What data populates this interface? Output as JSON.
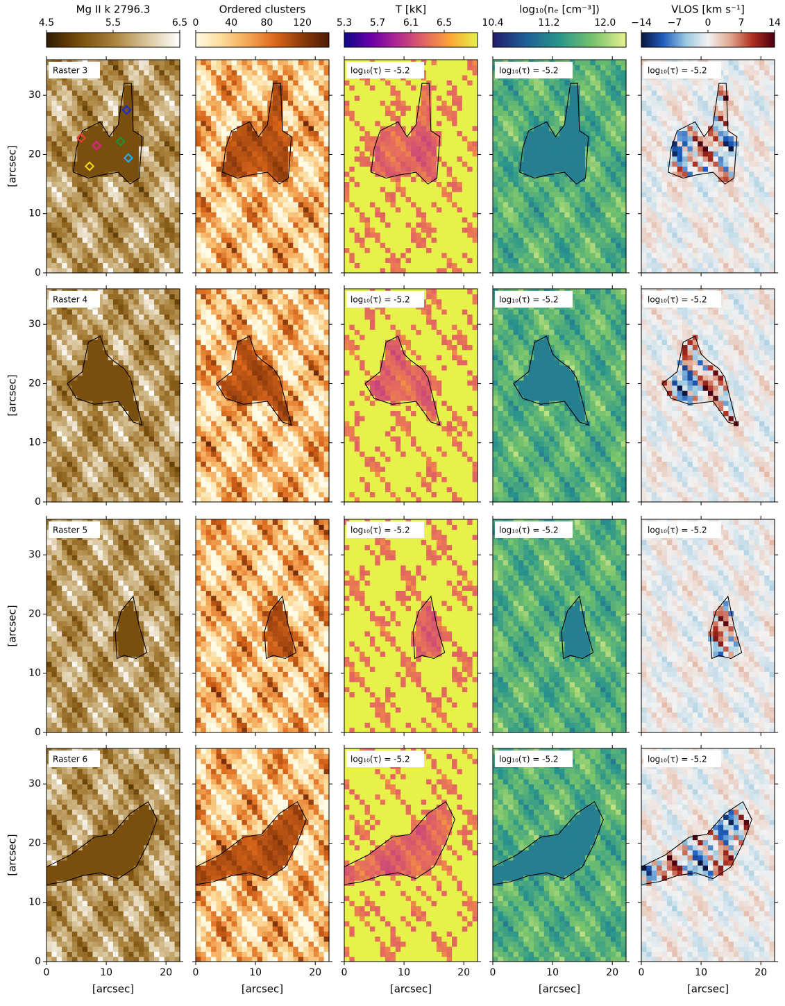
{
  "chart_data": [
    {
      "type": "image",
      "title": "Mg II k 2796.3",
      "colorbar_lim": [
        4.5,
        6.5
      ],
      "colorbar_ticks": [
        4.5,
        5.5,
        6.5
      ],
      "colormap": [
        "#2e1c00",
        "#7a4e0c",
        "#a8803a",
        "#d8c49a",
        "#ffffff"
      ],
      "xlim": [
        0,
        22.3
      ],
      "ylim": [
        0,
        36
      ],
      "xticks": [
        0,
        10,
        20
      ],
      "yticks": [
        0,
        10,
        20,
        30
      ],
      "xlabel": "[arcsec]",
      "ylabel": "[arcsec]",
      "panel_labels": [
        "Raster 3",
        "Raster 4",
        "Raster 5",
        "Raster 6"
      ]
    },
    {
      "type": "image",
      "title": "Ordered clusters",
      "colorbar_lim": [
        0,
        150
      ],
      "colorbar_ticks": [
        0,
        40,
        80,
        120
      ],
      "colormap": [
        "#fffbe6",
        "#fcd997",
        "#f3a352",
        "#d9661a",
        "#8c3a0c",
        "#4e1a04"
      ],
      "xlim": [
        0,
        22.3
      ],
      "ylim": [
        0,
        36
      ],
      "xticks": [
        0,
        10,
        20
      ],
      "yticks": [
        0,
        10,
        20,
        30
      ],
      "xlabel": "[arcsec]"
    },
    {
      "type": "image",
      "title": "T [kK]",
      "colorbar_lim": [
        5.3,
        6.9
      ],
      "colorbar_ticks": [
        5.3,
        5.7,
        6.1,
        6.5
      ],
      "colormap": [
        "#0d0887",
        "#6a00a8",
        "#b12a90",
        "#e16462",
        "#fca636",
        "#e6f24a"
      ],
      "xlim": [
        0,
        22.3
      ],
      "ylim": [
        0,
        36
      ],
      "xticks": [
        0,
        10,
        20
      ],
      "yticks": [
        0,
        10,
        20,
        30
      ],
      "xlabel": "[arcsec]",
      "annotation": "log₁₀(τ) = -5.2"
    },
    {
      "type": "image",
      "title": "log₁₀(nₑ [cm⁻³])",
      "colorbar_lim": [
        10.4,
        12.3
      ],
      "colorbar_ticks": [
        10.4,
        11.2,
        {
          "value": 12,
          "label": "12.0"
        }
      ],
      "colormap": [
        "#231a6e",
        "#1f5f96",
        "#2a958c",
        "#76c36c",
        "#e8f08e"
      ],
      "xlim": [
        0,
        22.3
      ],
      "ylim": [
        0,
        36
      ],
      "xticks": [
        0,
        10,
        20
      ],
      "yticks": [
        0,
        10,
        20,
        30
      ],
      "xlabel": "[arcsec]",
      "annotation": "log₁₀(τ) = -5.2"
    },
    {
      "type": "image",
      "title": "VLOS [km s⁻¹]",
      "colorbar_lim": [
        -14,
        14
      ],
      "colorbar_ticks": [
        {
          "value": -14,
          "label": "−14"
        },
        {
          "value": -7,
          "label": "−7"
        },
        0,
        7,
        14
      ],
      "colormap": [
        "#0a1440",
        "#1f5fbf",
        "#9ac8e0",
        "#f2f2f2",
        "#e0a890",
        "#b03020",
        "#4a0010"
      ],
      "xlim": [
        0,
        22.3
      ],
      "ylim": [
        0,
        36
      ],
      "xticks": [
        0,
        10,
        20
      ],
      "yticks": [
        0,
        10,
        20,
        30
      ],
      "xlabel": "[arcsec]",
      "annotation": "log₁₀(τ) = -5.2"
    }
  ]
}
